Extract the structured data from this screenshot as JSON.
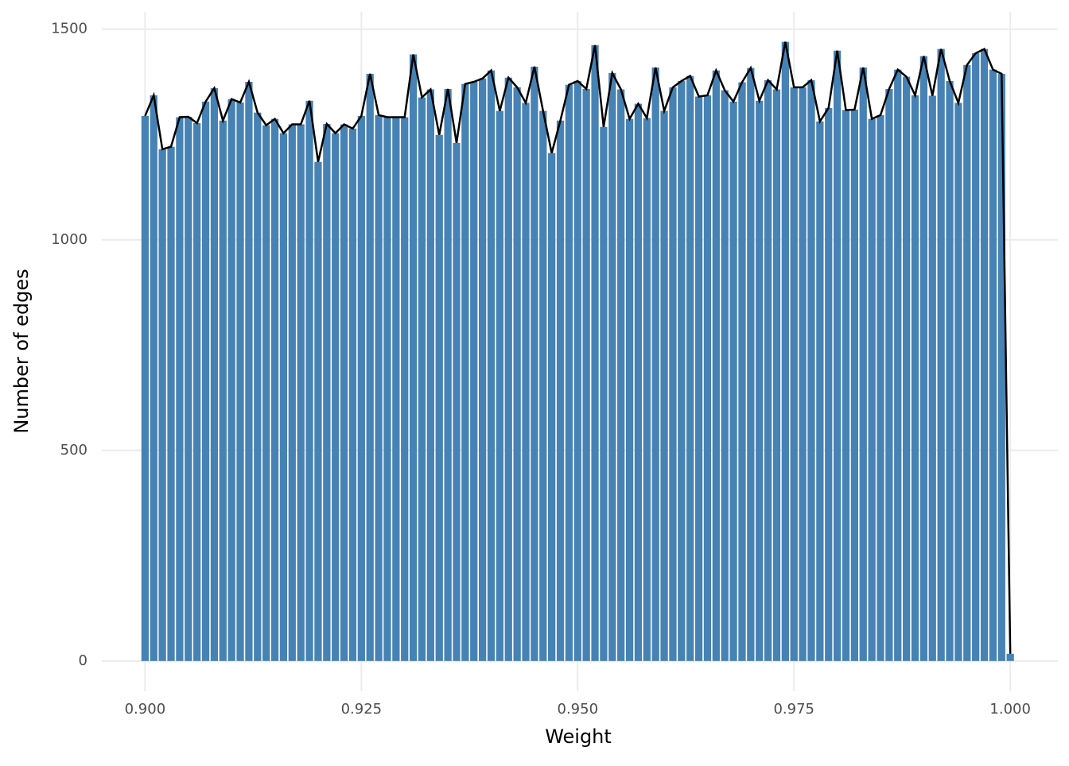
{
  "chart_data": {
    "type": "bar",
    "x_label": "Weight",
    "y_label": "Number of edges",
    "x": [
      0.9,
      0.901,
      0.902,
      0.903,
      0.904,
      0.905,
      0.906,
      0.907,
      0.908,
      0.909,
      0.91,
      0.911,
      0.912,
      0.913,
      0.914,
      0.915,
      0.916,
      0.917,
      0.918,
      0.919,
      0.92,
      0.921,
      0.922,
      0.923,
      0.924,
      0.925,
      0.926,
      0.927,
      0.928,
      0.929,
      0.93,
      0.931,
      0.932,
      0.933,
      0.934,
      0.935,
      0.936,
      0.937,
      0.938,
      0.939,
      0.94,
      0.941,
      0.942,
      0.943,
      0.944,
      0.945,
      0.946,
      0.947,
      0.948,
      0.949,
      0.95,
      0.951,
      0.952,
      0.953,
      0.954,
      0.955,
      0.956,
      0.957,
      0.958,
      0.959,
      0.96,
      0.961,
      0.962,
      0.963,
      0.964,
      0.965,
      0.966,
      0.967,
      0.968,
      0.969,
      0.97,
      0.971,
      0.972,
      0.973,
      0.974,
      0.975,
      0.976,
      0.977,
      0.978,
      0.979,
      0.98,
      0.981,
      0.982,
      0.983,
      0.984,
      0.985,
      0.986,
      0.987,
      0.988,
      0.989,
      0.99,
      0.991,
      0.992,
      0.993,
      0.994,
      0.995,
      0.996,
      0.997,
      0.998,
      0.999,
      1.0
    ],
    "values": [
      1294,
      1343,
      1215,
      1221,
      1291,
      1292,
      1277,
      1328,
      1360,
      1283,
      1334,
      1326,
      1375,
      1302,
      1272,
      1287,
      1253,
      1274,
      1274,
      1330,
      1185,
      1275,
      1253,
      1274,
      1264,
      1294,
      1394,
      1296,
      1291,
      1291,
      1291,
      1440,
      1338,
      1357,
      1249,
      1358,
      1230,
      1370,
      1375,
      1383,
      1402,
      1306,
      1385,
      1362,
      1325,
      1411,
      1306,
      1206,
      1283,
      1368,
      1377,
      1358,
      1462,
      1268,
      1396,
      1357,
      1287,
      1323,
      1289,
      1409,
      1306,
      1362,
      1377,
      1389,
      1340,
      1343,
      1402,
      1355,
      1328,
      1374,
      1408,
      1330,
      1379,
      1357,
      1470,
      1362,
      1362,
      1379,
      1281,
      1313,
      1449,
      1308,
      1309,
      1409,
      1287,
      1296,
      1358,
      1404,
      1387,
      1343,
      1436,
      1342,
      1453,
      1377,
      1325,
      1415,
      1443,
      1453,
      1404,
      1394,
      17
    ],
    "color": "#4682b4",
    "line_color": "#000000",
    "xlim": [
      0.895,
      1.0055
    ],
    "ylim": [
      -72,
      1541
    ],
    "xticks": [
      {
        "value": 0.9,
        "label": "0.900"
      },
      {
        "value": 0.925,
        "label": "0.925"
      },
      {
        "value": 0.95,
        "label": "0.950"
      },
      {
        "value": 0.975,
        "label": "0.975"
      },
      {
        "value": 1.0,
        "label": "1.000"
      }
    ],
    "yticks": [
      0,
      500,
      1000,
      1500
    ],
    "grid": true
  }
}
